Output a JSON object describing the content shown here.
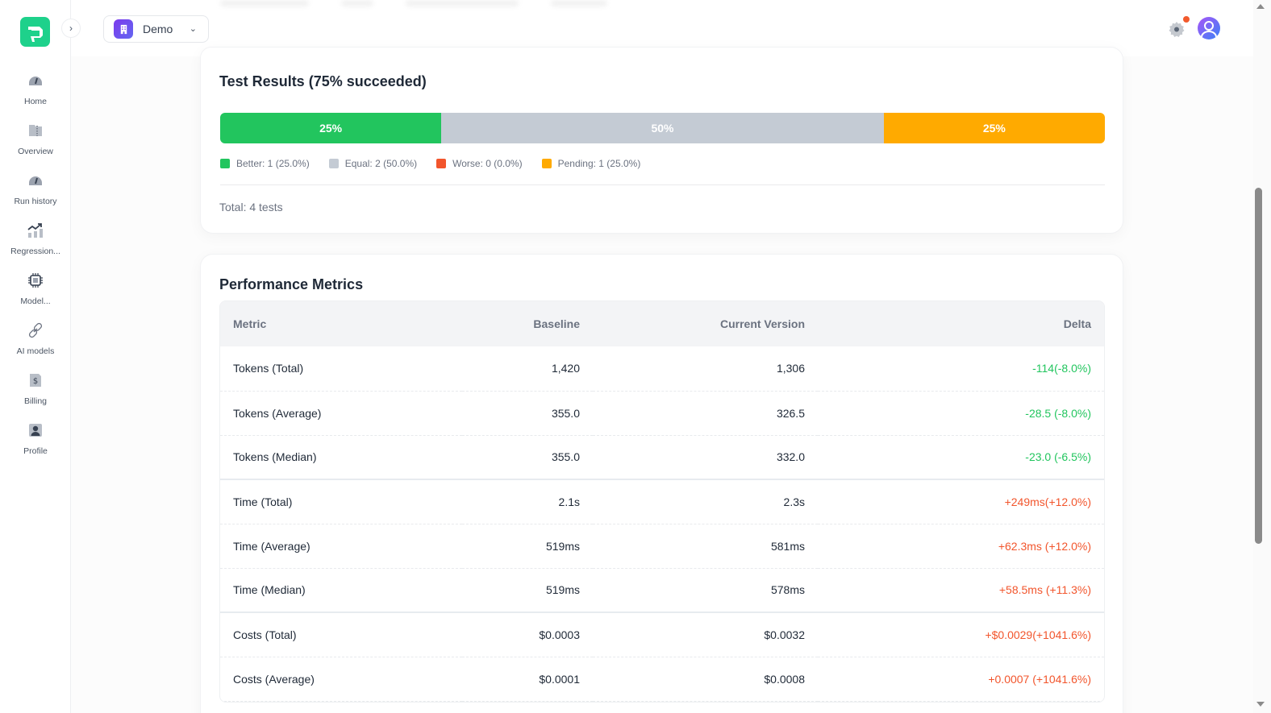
{
  "sidebar": {
    "items": [
      {
        "label": "Home",
        "icon": "gauge-icon"
      },
      {
        "label": "Overview",
        "icon": "folder-icon"
      },
      {
        "label": "Run history",
        "icon": "gauge-icon"
      },
      {
        "label": "Regression...",
        "icon": "trend-chart-icon"
      },
      {
        "label": "Model...",
        "icon": "chip-icon"
      },
      {
        "label": "AI models",
        "icon": "link-icon"
      },
      {
        "label": "Billing",
        "icon": "invoice-icon"
      },
      {
        "label": "Profile",
        "icon": "user-card-icon"
      }
    ]
  },
  "header": {
    "org_name": "Demo"
  },
  "test_results": {
    "title": "Test Results (75% succeeded)",
    "segments": [
      {
        "label": "25%",
        "percent": 25,
        "color": "#22c55e"
      },
      {
        "label": "50%",
        "percent": 50,
        "color": "#c4cbd4"
      },
      {
        "label": "25%",
        "percent": 25,
        "color": "#ffaa00"
      }
    ],
    "legend": [
      {
        "label": "Better: 1 (25.0%)",
        "color": "#22c55e"
      },
      {
        "label": "Equal: 2 (50.0%)",
        "color": "#c4cbd4"
      },
      {
        "label": "Worse: 0 (0.0%)",
        "color": "#f2552c"
      },
      {
        "label": "Pending: 1 (25.0%)",
        "color": "#ffaa00"
      }
    ],
    "total": "Total: 4 tests"
  },
  "performance": {
    "title": "Performance Metrics",
    "columns": [
      "Metric",
      "Baseline",
      "Current Version",
      "Delta"
    ],
    "rows": [
      {
        "metric": "Tokens (Total)",
        "baseline": "1,420",
        "current": "1,306",
        "delta": "-114(-8.0%)",
        "trend": "good"
      },
      {
        "metric": "Tokens (Average)",
        "baseline": "355.0",
        "current": "326.5",
        "delta": "-28.5 (-8.0%)",
        "trend": "good"
      },
      {
        "metric": "Tokens (Median)",
        "baseline": "355.0",
        "current": "332.0",
        "delta": "-23.0 (-6.5%)",
        "trend": "good"
      },
      {
        "metric": "Time (Total)",
        "baseline": "2.1s",
        "current": "2.3s",
        "delta": "+249ms(+12.0%)",
        "trend": "bad"
      },
      {
        "metric": "Time (Average)",
        "baseline": "519ms",
        "current": "581ms",
        "delta": "+62.3ms (+12.0%)",
        "trend": "bad"
      },
      {
        "metric": "Time (Median)",
        "baseline": "519ms",
        "current": "578ms",
        "delta": "+58.5ms (+11.3%)",
        "trend": "bad"
      },
      {
        "metric": "Costs (Total)",
        "baseline": "$0.0003",
        "current": "$0.0032",
        "delta": "+$0.0029(+1041.6%)",
        "trend": "bad"
      },
      {
        "metric": "Costs (Average)",
        "baseline": "$0.0001",
        "current": "$0.0008",
        "delta": "+0.0007 (+1041.6%)",
        "trend": "bad"
      }
    ]
  }
}
